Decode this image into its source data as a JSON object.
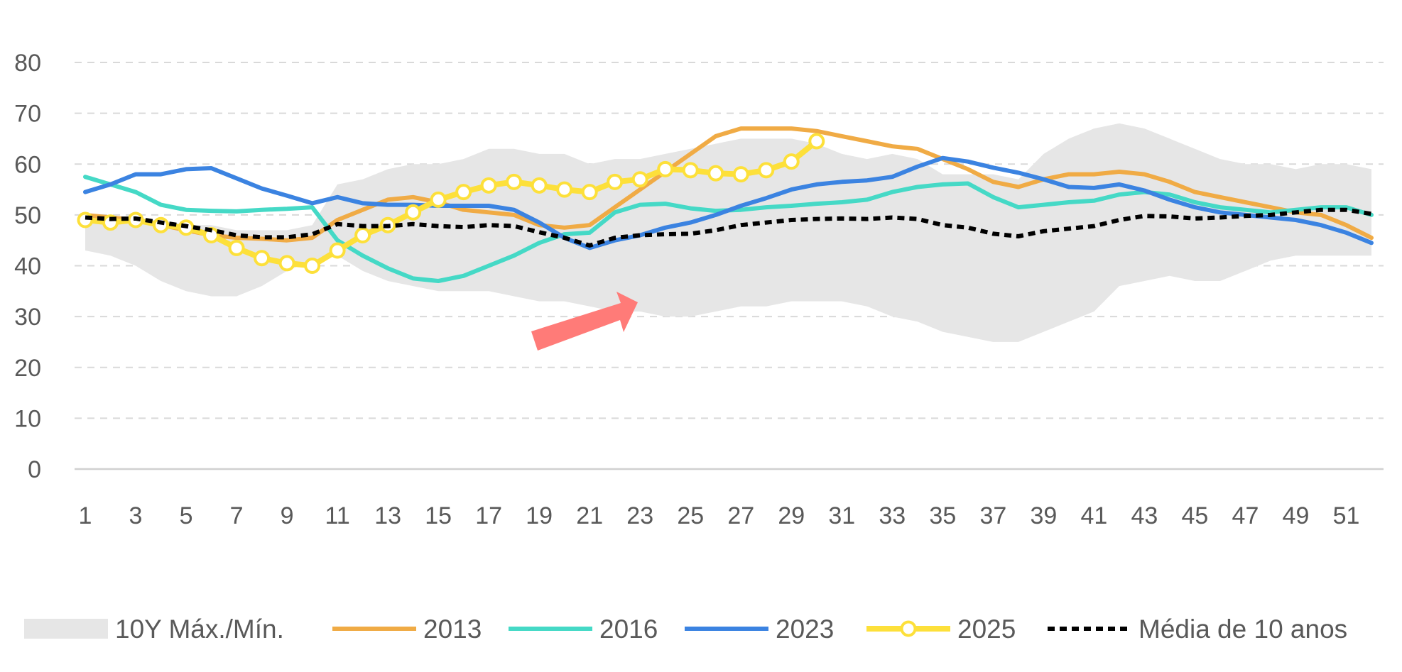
{
  "chart_data": {
    "type": "line",
    "title": "",
    "xlabel": "",
    "ylabel": "",
    "ylim": [
      0,
      80
    ],
    "xlim": [
      1,
      52
    ],
    "yticks": [
      0,
      10,
      20,
      30,
      40,
      50,
      60,
      70,
      80
    ],
    "xticks": [
      1,
      3,
      5,
      7,
      9,
      11,
      13,
      15,
      17,
      19,
      21,
      23,
      25,
      27,
      29,
      31,
      33,
      35,
      37,
      39,
      41,
      43,
      45,
      47,
      49,
      51
    ],
    "grid": "horizontal-dashed",
    "legend_position": "bottom",
    "band": {
      "name": "10Y Máx./Mín.",
      "color": "#e6e6e6",
      "x": [
        1,
        2,
        3,
        4,
        5,
        6,
        7,
        8,
        9,
        10,
        11,
        12,
        13,
        14,
        15,
        16,
        17,
        18,
        19,
        20,
        21,
        22,
        23,
        24,
        25,
        26,
        27,
        28,
        29,
        30,
        31,
        32,
        33,
        34,
        35,
        36,
        37,
        38,
        39,
        40,
        41,
        42,
        43,
        44,
        45,
        46,
        47,
        48,
        49,
        50,
        51,
        52
      ],
      "upper": [
        50,
        50,
        49,
        49,
        48,
        48,
        47,
        47,
        47,
        48,
        56,
        57,
        59,
        60,
        60,
        61,
        63,
        63,
        62,
        62,
        60,
        61,
        61,
        62,
        63,
        64,
        65,
        65,
        65,
        64,
        62,
        61,
        62,
        61,
        58,
        58,
        58,
        57,
        62,
        65,
        67,
        68,
        67,
        65,
        63,
        61,
        60,
        60,
        59,
        60,
        60,
        59
      ],
      "lower": [
        43,
        42,
        40,
        37,
        35,
        34,
        34,
        36,
        39,
        41,
        42,
        39,
        37,
        36,
        35,
        35,
        35,
        34,
        33,
        33,
        32,
        31,
        31,
        30,
        30,
        31,
        32,
        32,
        33,
        33,
        33,
        32,
        30,
        29,
        27,
        26,
        25,
        25,
        27,
        29,
        31,
        36,
        37,
        38,
        37,
        37,
        39,
        41,
        42,
        42,
        42,
        42
      ]
    },
    "series": [
      {
        "name": "2013",
        "color": "#f0ab45",
        "style": "solid",
        "x": [
          1,
          2,
          3,
          4,
          5,
          6,
          7,
          8,
          9,
          10,
          11,
          12,
          13,
          14,
          15,
          16,
          17,
          18,
          19,
          20,
          21,
          22,
          23,
          24,
          25,
          26,
          27,
          28,
          29,
          30,
          31,
          32,
          33,
          34,
          35,
          36,
          37,
          38,
          39,
          40,
          41,
          42,
          43,
          44,
          45,
          46,
          47,
          48,
          49,
          50,
          51,
          52
        ],
        "values": [
          50,
          49.5,
          49,
          48,
          47,
          46,
          45.5,
          45.3,
          45,
          45.5,
          49,
          51,
          53,
          53.5,
          52.5,
          51,
          50.5,
          50,
          48,
          47.5,
          48,
          51.5,
          55,
          58.5,
          62,
          65.5,
          67,
          67,
          67,
          66.5,
          65.5,
          64.5,
          63.5,
          63,
          61,
          59,
          56.5,
          55.5,
          57,
          58,
          58,
          58.5,
          58,
          56.5,
          54.5,
          53.5,
          52.5,
          51.5,
          50.5,
          50,
          48,
          45.5
        ]
      },
      {
        "name": "2016",
        "color": "#45d9c6",
        "style": "solid",
        "x": [
          1,
          2,
          3,
          4,
          5,
          6,
          7,
          8,
          9,
          10,
          11,
          12,
          13,
          14,
          15,
          16,
          17,
          18,
          19,
          20,
          21,
          22,
          23,
          24,
          25,
          26,
          27,
          28,
          29,
          30,
          31,
          32,
          33,
          34,
          35,
          36,
          37,
          38,
          39,
          40,
          41,
          42,
          43,
          44,
          45,
          46,
          47,
          48,
          49,
          50,
          51,
          52
        ],
        "values": [
          57.5,
          56,
          54.5,
          52,
          51,
          50.8,
          50.7,
          51,
          51.2,
          51.5,
          45,
          42,
          39.5,
          37.5,
          37,
          38,
          40,
          42,
          44.5,
          46.2,
          46.5,
          50.5,
          52,
          52.2,
          51.3,
          50.8,
          51,
          51.5,
          51.8,
          52.2,
          52.5,
          53,
          54.5,
          55.5,
          56,
          56.2,
          53.5,
          51.5,
          52,
          52.5,
          52.8,
          54,
          54.5,
          54,
          52.5,
          51.5,
          51,
          50.5,
          51,
          51.5,
          51.5,
          50
        ]
      },
      {
        "name": "2023",
        "color": "#3b83e1",
        "style": "solid",
        "x": [
          1,
          2,
          3,
          4,
          5,
          6,
          7,
          8,
          9,
          10,
          11,
          12,
          13,
          14,
          15,
          16,
          17,
          18,
          19,
          20,
          21,
          22,
          23,
          24,
          25,
          26,
          27,
          28,
          29,
          30,
          31,
          32,
          33,
          34,
          35,
          36,
          37,
          38,
          39,
          40,
          41,
          42,
          43,
          44,
          45,
          46,
          47,
          48,
          49,
          50,
          51,
          52
        ],
        "values": [
          54.5,
          56,
          58,
          58,
          59,
          59.2,
          57.2,
          55.2,
          53.8,
          52.3,
          53.5,
          52.3,
          52,
          52,
          51.8,
          51.8,
          51.8,
          51,
          48.5,
          45.5,
          43.5,
          45,
          46,
          47.5,
          48.5,
          50,
          51.8,
          53.3,
          55,
          56,
          56.5,
          56.8,
          57.5,
          59.5,
          61.2,
          60.5,
          59.3,
          58.3,
          57,
          55.5,
          55.3,
          56,
          54.8,
          53,
          51.5,
          50.5,
          50,
          49.5,
          49,
          48,
          46.5,
          44.5
        ]
      },
      {
        "name": "2025",
        "color": "#fde03a",
        "style": "solid-markers",
        "x": [
          1,
          2,
          3,
          4,
          5,
          6,
          7,
          8,
          9,
          10,
          11,
          12,
          13,
          14,
          15,
          16,
          17,
          18,
          19,
          20,
          21,
          22,
          23,
          24,
          25,
          26,
          27,
          28,
          29,
          30
        ],
        "values": [
          49,
          48.5,
          49,
          48,
          47.5,
          46,
          43.5,
          41.5,
          40.5,
          40,
          43,
          46,
          48,
          50.5,
          53,
          54.5,
          55.8,
          56.5,
          55.8,
          55,
          54.5,
          56.5,
          57,
          59,
          58.8,
          58.2,
          58,
          58.8,
          60.5,
          64.5
        ]
      },
      {
        "name": "Média de 10 anos",
        "color": "#000000",
        "style": "dashed",
        "x": [
          1,
          2,
          3,
          4,
          5,
          6,
          7,
          8,
          9,
          10,
          11,
          12,
          13,
          14,
          15,
          16,
          17,
          18,
          19,
          20,
          21,
          22,
          23,
          24,
          25,
          26,
          27,
          28,
          29,
          30,
          31,
          32,
          33,
          34,
          35,
          36,
          37,
          38,
          39,
          40,
          41,
          42,
          43,
          44,
          45,
          46,
          47,
          48,
          49,
          50,
          51,
          52
        ],
        "values": [
          49.5,
          49.2,
          49.3,
          48.5,
          47.8,
          47,
          46,
          45.6,
          45.6,
          46.2,
          48.2,
          47.8,
          47.8,
          48.2,
          47.8,
          47.6,
          48,
          47.8,
          46.6,
          45.5,
          44,
          45.5,
          46,
          46.2,
          46.3,
          47,
          48,
          48.5,
          49,
          49.2,
          49.3,
          49.2,
          49.5,
          49.2,
          48,
          47.5,
          46.3,
          45.8,
          46.8,
          47.3,
          47.8,
          49,
          49.8,
          49.7,
          49.3,
          49.5,
          49.8,
          50,
          50.5,
          51,
          51,
          50.2
        ]
      }
    ]
  }
}
